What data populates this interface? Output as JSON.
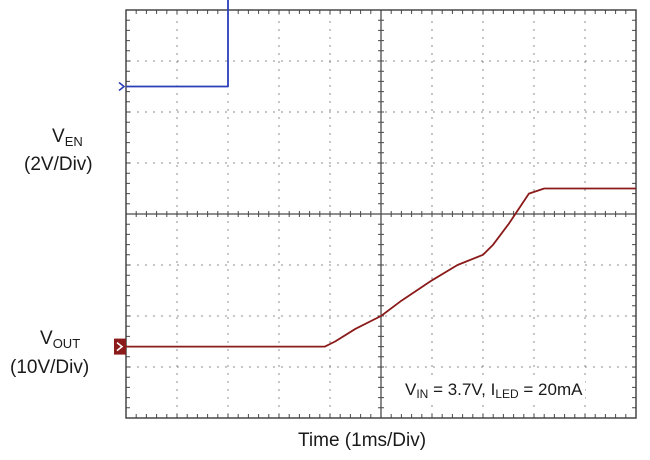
{
  "chart_data": {
    "type": "line",
    "title": "",
    "xlabel": "Time  (1ms/Div)",
    "ylabel": "",
    "grid": true,
    "x_divisions": 10,
    "y_divisions": 8,
    "xlim": [
      0,
      10
    ],
    "series": [
      {
        "name": "VEN (2V/Div)",
        "color": "#2a3fb8",
        "ground_marker_div": 2.5,
        "x": [
          0,
          1.95,
          1.95,
          2.0,
          2.0,
          10
        ],
        "y": [
          2.5,
          2.5,
          2.5,
          2.5,
          5.0,
          4.98
        ]
      },
      {
        "name": "VOUT (10V/Div)",
        "color": "#8b1a1a",
        "ground_marker_div": -2.6,
        "x": [
          0,
          3.9,
          4.1,
          4.5,
          5.0,
          5.4,
          6.0,
          6.5,
          7.0,
          7.2,
          7.5,
          7.9,
          8.2,
          10
        ],
        "y": [
          -2.6,
          -2.6,
          -2.5,
          -2.25,
          -2.0,
          -1.7,
          -1.3,
          -1.0,
          -0.8,
          -0.6,
          -0.2,
          0.4,
          0.5,
          0.5
        ]
      }
    ],
    "labels": {
      "ven_main": "V",
      "ven_sub": "EN",
      "ven_scale": "(2V/Div)",
      "vout_main": "V",
      "vout_sub": "OUT",
      "vout_scale": "(10V/Div)",
      "cond_vin_main": "V",
      "cond_vin_sub": "IN",
      "cond_vin_rest": " = 3.7V, ",
      "cond_iled_main": "I",
      "cond_iled_sub": "LED",
      "cond_iled_rest": " = 20mA"
    }
  }
}
